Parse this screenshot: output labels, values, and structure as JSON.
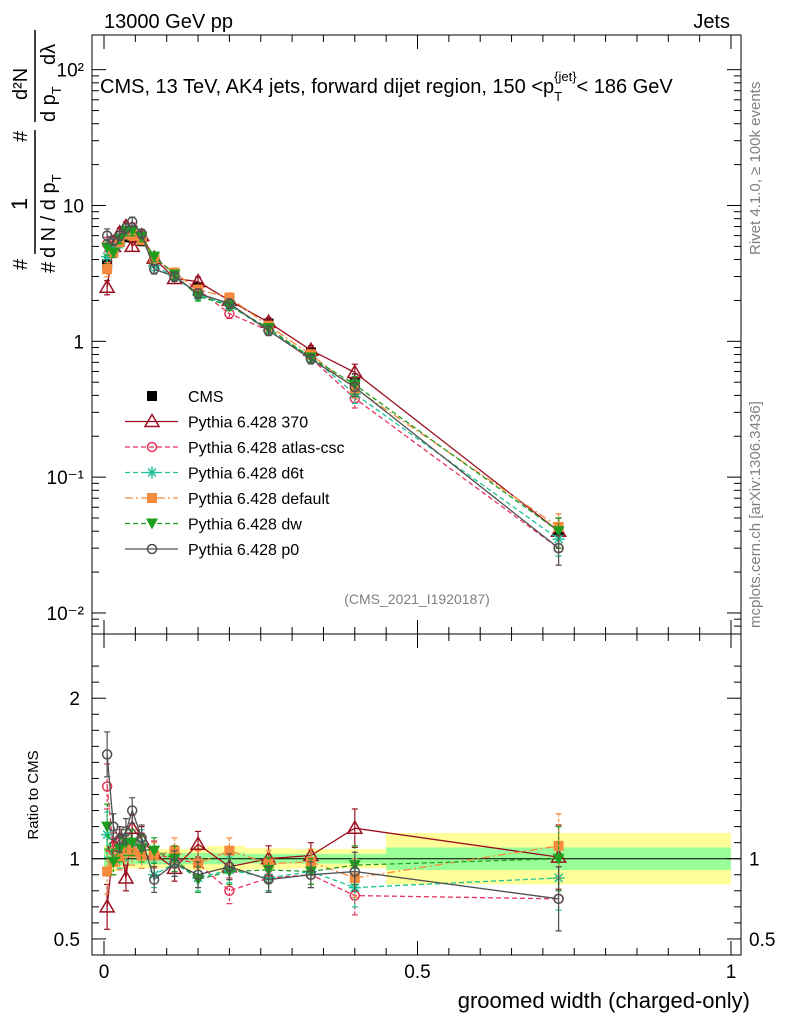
{
  "header": {
    "energy": "13000 GeV pp",
    "category": "Jets"
  },
  "side_labels": {
    "rivet": "Rivet 4.1.0, ≥ 100k events",
    "mcplots": "mcplots.cern.ch [arXiv:1306.3436]"
  },
  "analysis_id": "(CMS_2021_I1920187)",
  "chart_data": [
    {
      "type": "line",
      "panel": "main",
      "title": "CMS, 13 TeV, AK4 jets, forward dijet region, 150 <p_T^{jet}< 186 GeV",
      "title_parts": {
        "pre": "CMS, 13 TeV, AK4 jets, forward dijet region, 150 <p",
        "sub": "T",
        "sup": "{jet}",
        "post": "< 186 GeV"
      },
      "xlabel": "groomed width (charged-only)",
      "ylabel": "1/dN/dp_T  d²N/dp_T dλ",
      "ylabel_parts": {
        "hash": "#",
        "one": "1",
        "dN": "d N / d p",
        "T": "T",
        "d2N": "d²N",
        "dp": "d p",
        "dl": "dλ"
      },
      "yscale": "log",
      "xlim": [
        0,
        1
      ],
      "ylim": [
        0.007,
        180
      ],
      "ytick_labels": [
        "10⁻²",
        "10⁻¹",
        "1",
        "10",
        "10²"
      ],
      "x": [
        0.005,
        0.015,
        0.025,
        0.035,
        0.045,
        0.06,
        0.08,
        0.1125,
        0.15,
        0.2,
        0.2625,
        0.33,
        0.4,
        0.725
      ],
      "series": [
        {
          "name": "CMS",
          "values": [
            3.7,
            4.6,
            5.4,
            5.9,
            5.8,
            5.5,
            4.0,
            3.1,
            2.5,
            2.0,
            1.35,
            0.83,
            0.5,
            0.04
          ]
        },
        {
          "name": "Pythia 6.428 370",
          "values": [
            2.5,
            5.0,
            6.3,
            7.0,
            5.0,
            6.0,
            4.1,
            2.9,
            2.75,
            2.0,
            1.38,
            0.86,
            0.59,
            0.04
          ]
        },
        {
          "name": "Pythia 6.428 atlas-csc",
          "values": [
            5.2,
            5.6,
            6.0,
            6.4,
            6.9,
            6.0,
            4.1,
            3.2,
            2.4,
            1.6,
            1.2,
            0.75,
            0.38,
            0.03
          ]
        },
        {
          "name": "Pythia 6.428 d6t",
          "values": [
            4.2,
            4.6,
            5.3,
            6.2,
            6.4,
            5.8,
            3.6,
            3.0,
            2.2,
            1.85,
            1.2,
            0.77,
            0.41,
            0.035
          ]
        },
        {
          "name": "Pythia 6.428 default",
          "values": [
            3.4,
            4.5,
            5.4,
            6.2,
            6.0,
            5.6,
            4.1,
            3.2,
            2.4,
            2.1,
            1.3,
            0.8,
            0.45,
            0.043
          ]
        },
        {
          "name": "Pythia 6.428 dw",
          "values": [
            4.9,
            4.5,
            5.7,
            6.5,
            6.5,
            5.9,
            4.2,
            3.1,
            2.15,
            1.83,
            1.25,
            0.76,
            0.48,
            0.04
          ]
        },
        {
          "name": "Pythia 6.428 p0",
          "values": [
            6.0,
            5.5,
            6.0,
            6.8,
            7.6,
            6.2,
            3.4,
            3.0,
            2.25,
            1.9,
            1.2,
            0.74,
            0.46,
            0.03
          ]
        }
      ]
    },
    {
      "type": "line",
      "panel": "ratio",
      "ylabel": "Ratio to CMS",
      "xlabel": "groomed width (charged-only)",
      "xlim": [
        0,
        1
      ],
      "ylim": [
        0.4,
        2.4
      ],
      "yticks": [
        0.5,
        1,
        2
      ],
      "ytick_labels": [
        "0.5",
        "1",
        "2"
      ],
      "xticks": [
        0,
        0.5,
        1
      ],
      "xtick_labels": [
        "0",
        "0.5",
        "1"
      ],
      "x": [
        0.005,
        0.015,
        0.025,
        0.035,
        0.045,
        0.06,
        0.08,
        0.1125,
        0.15,
        0.2,
        0.2625,
        0.33,
        0.4,
        0.725
      ],
      "error_bands": {
        "bins": [
          0,
          0.01,
          0.02,
          0.03,
          0.04,
          0.05,
          0.07,
          0.09,
          0.135,
          0.165,
          0.225,
          0.3,
          0.35,
          0.45,
          1.0
        ],
        "inner": [
          0.06,
          0.05,
          0.04,
          0.035,
          0.035,
          0.035,
          0.035,
          0.035,
          0.035,
          0.035,
          0.03,
          0.03,
          0.03,
          0.07
        ],
        "outer": [
          0.08,
          0.08,
          0.07,
          0.06,
          0.06,
          0.06,
          0.06,
          0.06,
          0.07,
          0.08,
          0.065,
          0.06,
          0.06,
          0.16
        ]
      },
      "series": [
        {
          "name": "Pythia 6.428 370",
          "values": [
            0.7,
            1.08,
            1.12,
            0.88,
            1.19,
            1.12,
            1.03,
            0.94,
            1.09,
            0.95,
            1.0,
            1.02,
            1.19,
            1.01
          ]
        },
        {
          "name": "Pythia 6.428 atlas-csc",
          "values": [
            1.45,
            1.05,
            1.1,
            1.1,
            1.1,
            1.08,
            1.03,
            1.0,
            0.97,
            0.8,
            0.88,
            0.9,
            0.77,
            0.75
          ]
        },
        {
          "name": "Pythia 6.428 d6t",
          "values": [
            1.15,
            0.98,
            1.02,
            1.07,
            1.1,
            1.1,
            0.9,
            0.97,
            0.88,
            0.93,
            0.88,
            0.92,
            0.82,
            0.88
          ]
        },
        {
          "name": "Pythia 6.428 default",
          "values": [
            0.92,
            0.98,
            1.01,
            1.06,
            1.04,
            1.02,
            1.02,
            1.05,
            0.97,
            1.05,
            0.97,
            0.98,
            0.88,
            1.08
          ]
        },
        {
          "name": "Pythia 6.428 dw",
          "values": [
            1.2,
            0.98,
            1.06,
            1.1,
            1.1,
            1.06,
            1.05,
            1.0,
            0.87,
            0.92,
            0.93,
            0.92,
            0.96,
            1.0
          ]
        },
        {
          "name": "Pythia 6.428 p0",
          "values": [
            1.65,
            1.2,
            1.12,
            1.17,
            1.3,
            1.13,
            0.87,
            0.97,
            0.9,
            0.95,
            0.87,
            0.9,
            0.92,
            0.75
          ]
        }
      ]
    }
  ],
  "styles": {
    "CMS": {
      "color": "#000000",
      "marker": "square",
      "dash": ""
    },
    "Pythia 6.428 370": {
      "color": "#9b1020",
      "marker": "triangle-open",
      "dash": ""
    },
    "Pythia 6.428 atlas-csc": {
      "color": "#e8345a",
      "marker": "circle-open",
      "dash": "5,3"
    },
    "Pythia 6.428 d6t": {
      "color": "#1fc39a",
      "marker": "star",
      "dash": "5,3"
    },
    "Pythia 6.428 default": {
      "color": "#f58a3c",
      "marker": "square",
      "dash": "8,3,2,3"
    },
    "Pythia 6.428 dw": {
      "color": "#1e9e1e",
      "marker": "triangle-down",
      "dash": "5,3"
    },
    "Pythia 6.428 p0": {
      "color": "#505050",
      "marker": "circle-open",
      "dash": ""
    }
  },
  "band_colors": {
    "inner": "#99ff99",
    "outer": "#ffff99"
  }
}
